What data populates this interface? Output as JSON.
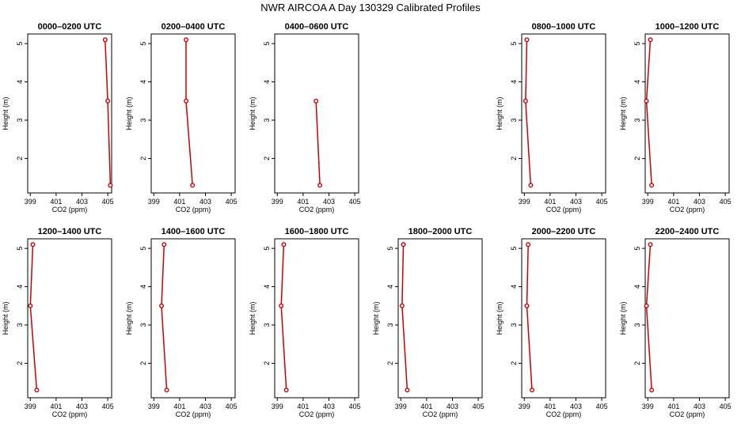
{
  "title": "NWR AIRCOA A  Day 130329  Calibrated Profiles",
  "chart_data": {
    "type": "line",
    "xlabel": "CO2 (ppm)",
    "ylabel": "Height (m)",
    "xlim": [
      398.8,
      405.3
    ],
    "ylim": [
      1.1,
      5.25
    ],
    "xticks": [
      "399",
      "401",
      "403",
      "405"
    ],
    "yticks": [
      "2",
      "3",
      "4",
      "5"
    ],
    "line_color": "#cc0000",
    "panels": [
      {
        "title": "0000–0200 UTC",
        "points": [
          {
            "x": 404.8,
            "y": 5.1
          },
          {
            "x": 405.0,
            "y": 3.5
          },
          {
            "x": 405.2,
            "y": 1.3
          }
        ]
      },
      {
        "title": "0200–0400 UTC",
        "points": [
          {
            "x": 401.5,
            "y": 5.1
          },
          {
            "x": 401.5,
            "y": 3.5
          },
          {
            "x": 402.0,
            "y": 1.3
          }
        ]
      },
      {
        "title": "0400–0600 UTC",
        "points": [
          {
            "x": 402.0,
            "y": 3.5
          },
          {
            "x": 402.3,
            "y": 1.3
          }
        ]
      },
      null,
      {
        "title": "0800–1000 UTC",
        "points": [
          {
            "x": 399.2,
            "y": 5.1
          },
          {
            "x": 399.1,
            "y": 3.5
          },
          {
            "x": 399.5,
            "y": 1.3
          }
        ]
      },
      {
        "title": "1000–1200 UTC",
        "points": [
          {
            "x": 399.2,
            "y": 5.1
          },
          {
            "x": 398.9,
            "y": 3.5
          },
          {
            "x": 399.3,
            "y": 1.3
          }
        ]
      },
      {
        "title": "1200–1400 UTC",
        "points": [
          {
            "x": 399.2,
            "y": 5.1
          },
          {
            "x": 399.0,
            "y": 3.5
          },
          {
            "x": 399.5,
            "y": 1.3
          }
        ]
      },
      {
        "title": "1400–1600 UTC",
        "points": [
          {
            "x": 399.8,
            "y": 5.1
          },
          {
            "x": 399.6,
            "y": 3.5
          },
          {
            "x": 400.0,
            "y": 1.3
          }
        ]
      },
      {
        "title": "1600–1800 UTC",
        "points": [
          {
            "x": 399.5,
            "y": 5.1
          },
          {
            "x": 399.3,
            "y": 3.5
          },
          {
            "x": 399.7,
            "y": 1.3
          }
        ]
      },
      {
        "title": "1800–2000 UTC",
        "points": [
          {
            "x": 399.2,
            "y": 5.1
          },
          {
            "x": 399.1,
            "y": 3.5
          },
          {
            "x": 399.5,
            "y": 1.3
          }
        ]
      },
      {
        "title": "2000–2200 UTC",
        "points": [
          {
            "x": 399.3,
            "y": 5.1
          },
          {
            "x": 399.2,
            "y": 3.5
          },
          {
            "x": 399.6,
            "y": 1.3
          }
        ]
      },
      {
        "title": "2200–2400 UTC",
        "points": [
          {
            "x": 399.2,
            "y": 5.1
          },
          {
            "x": 398.9,
            "y": 3.5
          },
          {
            "x": 399.3,
            "y": 1.3
          }
        ]
      }
    ]
  }
}
